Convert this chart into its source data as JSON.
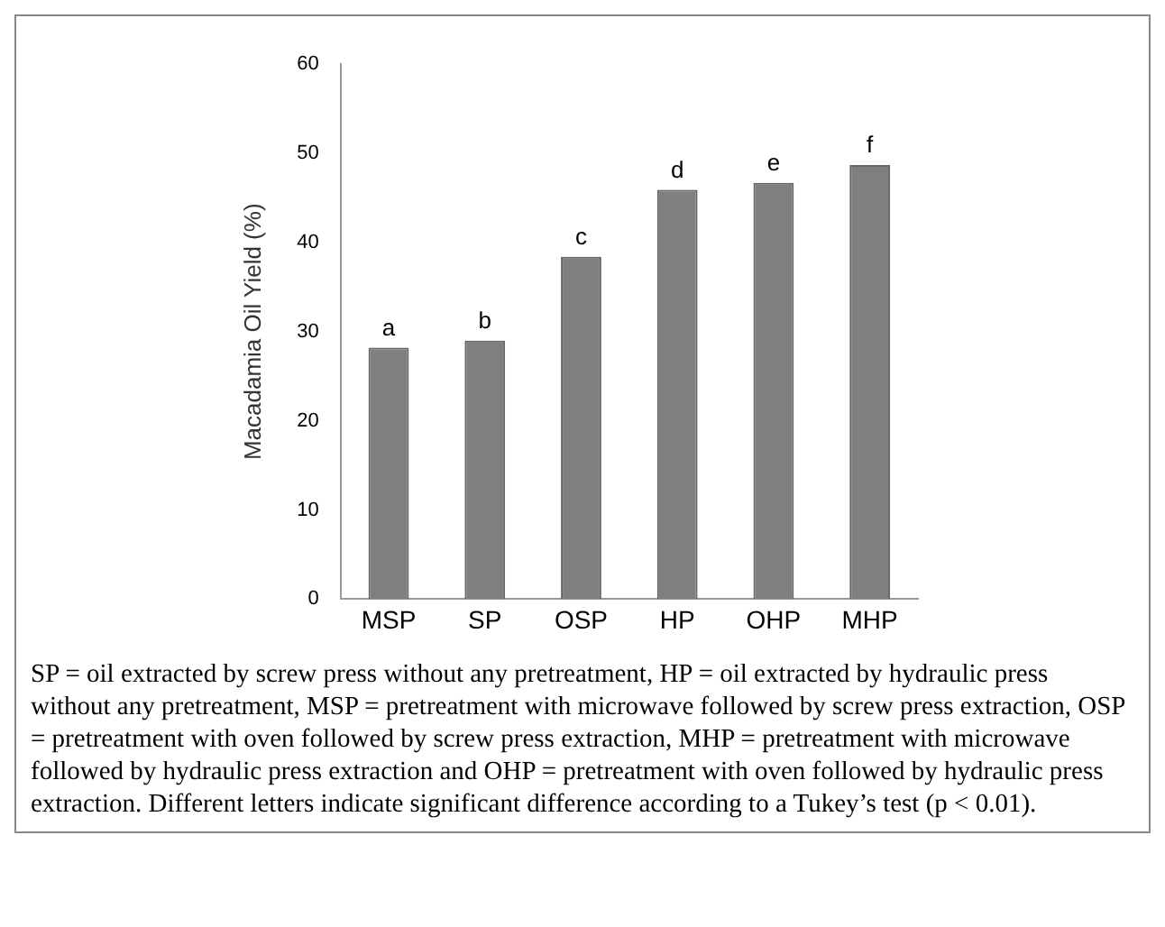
{
  "chart_data": {
    "type": "bar",
    "ylabel": "Macadamia Oil Yield (%)",
    "categories": [
      "MSP",
      "SP",
      "OSP",
      "HP",
      "OHP",
      "MHP"
    ],
    "values": [
      28.2,
      29,
      38.4,
      45.9,
      46.7,
      48.7
    ],
    "color": "#7f7f7f",
    "ylim": [
      0,
      60
    ],
    "yticks": [
      0,
      10,
      20,
      30,
      40,
      50,
      60
    ],
    "grid": false,
    "legend": false,
    "annotations": [
      {
        "text": "a",
        "x": "MSP",
        "y": 28.2
      },
      {
        "text": "b",
        "x": "SP",
        "y": 29
      },
      {
        "text": "c",
        "x": "OSP",
        "y": 38.4
      },
      {
        "text": "d",
        "x": "HP",
        "y": 45.9
      },
      {
        "text": "e",
        "x": "OHP",
        "y": 46.7
      },
      {
        "text": "f",
        "x": "MHP",
        "y": 48.7
      },
      "SP = oil extracted by screw press without any pretreatment, HP = oil extracted by hydraulic press without any pretreatment, MSP = pretreatment with microwave followed by screw press extraction, OSP = pretreatment with oven followed by screw press extraction, MHP = pretreatment with microwave followed by hydraulic press extraction and  OHP = pretreatment with oven followed by hydraulic press extraction. Different letters indicate significant difference according to a Tukey’s test (p < 0.01)."
    ]
  }
}
